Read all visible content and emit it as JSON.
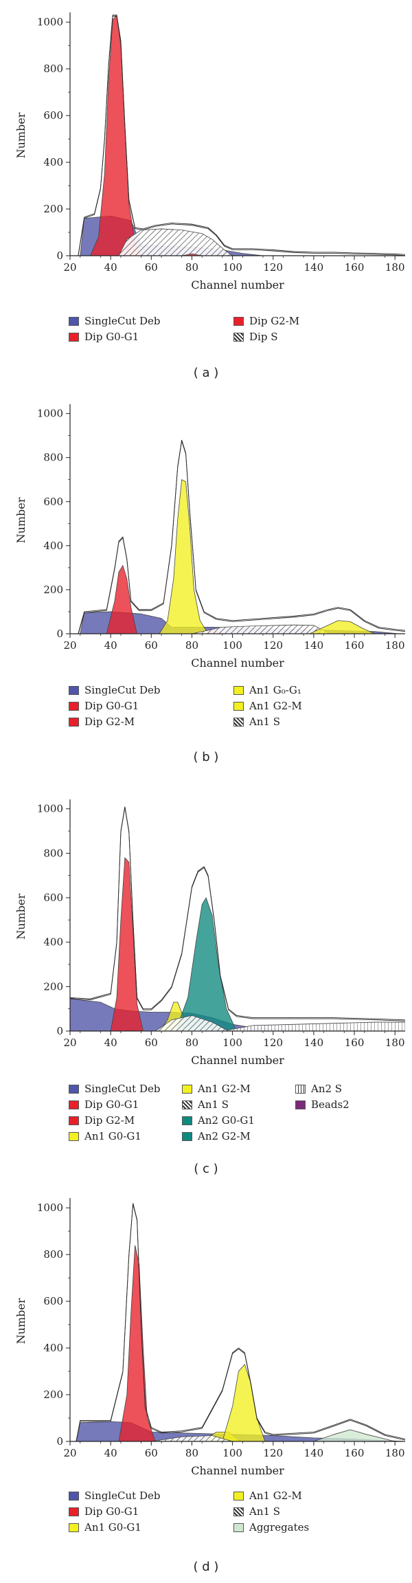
{
  "colors": {
    "SingleCut Deb": "#4f55a8",
    "Dip G0-G1": "#e8202a",
    "Dip G2-M": "#e8202a",
    "Dip S": "hatch",
    "An1 G0-G1": "#f2f020",
    "An1 G2-M": "#f2f020",
    "An1 S": "hatch",
    "An2 G0-G1": "#0f8a80",
    "An2 G2-M": "#0f8a80",
    "An2 S": "vhatch",
    "Beads2": "#7a2a7a",
    "Aggregates": "#cfe8cf"
  },
  "chart_data": [
    {
      "type": "area",
      "panel_label": "( a )",
      "xlabel": "Channel number",
      "ylabel": "Number",
      "xlim": [
        20,
        185
      ],
      "ylim": [
        0,
        1030
      ],
      "xticks": [
        "20",
        "40",
        "60",
        "80",
        "100",
        "120",
        "140",
        "160",
        "180"
      ],
      "yticks": [
        "0",
        "200",
        "400",
        "600",
        "800",
        "1000"
      ],
      "series": [
        {
          "name": "SingleCut Deb",
          "color": "#4f55a8",
          "x": [
            25,
            27,
            40,
            50,
            55,
            70,
            85,
            95,
            105,
            115
          ],
          "y": [
            0,
            160,
            170,
            150,
            45,
            40,
            35,
            25,
            10,
            0
          ]
        },
        {
          "name": "Dip G0-G1",
          "color": "#e8202a",
          "x": [
            30,
            34,
            37,
            39,
            41,
            43,
            45,
            47,
            49,
            52,
            55
          ],
          "y": [
            0,
            80,
            350,
            750,
            1010,
            1030,
            900,
            550,
            220,
            60,
            0
          ]
        },
        {
          "name": "Dip S",
          "color": "hatch",
          "x": [
            44,
            48,
            55,
            65,
            75,
            85,
            90,
            96,
            100
          ],
          "y": [
            0,
            70,
            110,
            115,
            110,
            95,
            70,
            25,
            0
          ]
        },
        {
          "name": "Dip G2-M",
          "color": "#e8202a",
          "x": [
            75,
            80,
            85
          ],
          "y": [
            0,
            8,
            0
          ]
        }
      ],
      "total_envelope": {
        "x": [
          24,
          27,
          32,
          35,
          37,
          39,
          41,
          43,
          45,
          47,
          49,
          52,
          56,
          62,
          70,
          80,
          88,
          92,
          96,
          100,
          110,
          120,
          130,
          140,
          150,
          160,
          170,
          180,
          185
        ],
        "y": [
          0,
          165,
          180,
          290,
          500,
          820,
          1030,
          1030,
          920,
          560,
          240,
          120,
          115,
          130,
          140,
          135,
          120,
          90,
          45,
          30,
          30,
          25,
          18,
          15,
          15,
          12,
          10,
          8,
          5
        ]
      },
      "legend": [
        "SingleCut Deb",
        "Dip G0-G1",
        "Dip G2-M",
        "Dip S"
      ]
    },
    {
      "type": "area",
      "panel_label": "( b )",
      "xlabel": "Channel number",
      "ylabel": "Number",
      "xlim": [
        20,
        185
      ],
      "ylim": [
        0,
        1030
      ],
      "xticks": [
        "20",
        "40",
        "60",
        "80",
        "100",
        "120",
        "140",
        "160",
        "180"
      ],
      "yticks": [
        "0",
        "200",
        "400",
        "600",
        "800",
        "1000"
      ],
      "series": [
        {
          "name": "SingleCut Deb",
          "color": "#4f55a8",
          "x": [
            25,
            27,
            40,
            55,
            65,
            70,
            90,
            110,
            130,
            150,
            170,
            182
          ],
          "y": [
            0,
            95,
            100,
            90,
            70,
            30,
            30,
            25,
            20,
            15,
            10,
            0
          ]
        },
        {
          "name": "Dip G0-G1",
          "color": "#e8202a",
          "x": [
            38,
            42,
            44,
            46,
            48,
            50,
            53
          ],
          "y": [
            0,
            150,
            280,
            310,
            250,
            120,
            0
          ]
        },
        {
          "name": "Dip G2-M",
          "color": "#e8202a",
          "x": [
            84,
            90,
            96
          ],
          "y": [
            0,
            18,
            0
          ]
        },
        {
          "name": "An1 G0-G1",
          "color": "#f2f020",
          "x": [
            64,
            68,
            71,
            73,
            75,
            77,
            79,
            81,
            84,
            88
          ],
          "y": [
            0,
            60,
            250,
            520,
            700,
            690,
            480,
            200,
            60,
            0
          ]
        },
        {
          "name": "An1 S",
          "color": "hatch",
          "x": [
            80,
            95,
            110,
            130,
            140,
            148
          ],
          "y": [
            0,
            30,
            35,
            40,
            38,
            0
          ]
        },
        {
          "name": "An1 G2-M",
          "color": "#f2f020",
          "x": [
            138,
            145,
            152,
            158,
            164,
            170
          ],
          "y": [
            0,
            30,
            60,
            55,
            25,
            0
          ]
        }
      ],
      "total_envelope": {
        "x": [
          24,
          27,
          38,
          42,
          44,
          46,
          48,
          50,
          54,
          60,
          66,
          70,
          73,
          75,
          77,
          79,
          82,
          86,
          92,
          100,
          115,
          130,
          140,
          147,
          152,
          158,
          165,
          172,
          180,
          185
        ],
        "y": [
          0,
          100,
          110,
          300,
          420,
          440,
          340,
          150,
          110,
          110,
          140,
          400,
          760,
          880,
          820,
          550,
          200,
          100,
          70,
          60,
          70,
          80,
          90,
          110,
          120,
          110,
          60,
          30,
          20,
          15
        ]
      },
      "legend": [
        "SingleCut Deb",
        "Dip G0-G1",
        "Dip G2-M",
        "An1 G₀-G₁",
        "An1 G2-M",
        "An1 S"
      ]
    },
    {
      "type": "area",
      "panel_label": "( c )",
      "xlabel": "Channel number",
      "ylabel": "Number",
      "xlim": [
        20,
        185
      ],
      "ylim": [
        0,
        1030
      ],
      "xticks": [
        "20",
        "40",
        "60",
        "80",
        "100",
        "120",
        "140",
        "160",
        "180"
      ],
      "yticks": [
        "0",
        "200",
        "400",
        "600",
        "800",
        "1000"
      ],
      "series": [
        {
          "name": "SingleCut Deb",
          "color": "#4f55a8",
          "x": [
            20,
            25,
            35,
            42,
            50,
            60,
            70,
            80,
            90,
            100,
            110,
            120,
            140,
            160,
            185
          ],
          "y": [
            150,
            140,
            130,
            100,
            90,
            85,
            85,
            80,
            60,
            30,
            15,
            10,
            5,
            3,
            0
          ]
        },
        {
          "name": "Dip G0-G1",
          "color": "#e8202a",
          "x": [
            40,
            43,
            45,
            47,
            49,
            51,
            53,
            56
          ],
          "y": [
            0,
            150,
            500,
            780,
            760,
            450,
            120,
            0
          ]
        },
        {
          "name": "An1 G0-G1",
          "color": "#f2f020",
          "x": [
            64,
            68,
            71,
            73,
            76,
            80
          ],
          "y": [
            0,
            50,
            130,
            130,
            60,
            0
          ]
        },
        {
          "name": "An2 G0-G1",
          "color": "#0f8a80",
          "x": [
            72,
            78,
            82,
            85,
            87,
            90,
            93,
            97,
            102
          ],
          "y": [
            0,
            150,
            400,
            570,
            600,
            520,
            300,
            100,
            0
          ]
        },
        {
          "name": "An2 S",
          "color": "vhatch",
          "x": [
            95,
            110,
            130,
            150,
            170,
            185
          ],
          "y": [
            0,
            25,
            30,
            35,
            40,
            40
          ]
        },
        {
          "name": "An1 S",
          "color": "hatch",
          "x": [
            62,
            70,
            80,
            90,
            98
          ],
          "y": [
            0,
            50,
            70,
            40,
            0
          ]
        }
      ],
      "total_envelope": {
        "x": [
          20,
          30,
          40,
          43,
          45,
          47,
          49,
          51,
          53,
          56,
          60,
          65,
          70,
          75,
          80,
          83,
          86,
          88,
          91,
          94,
          98,
          102,
          110,
          130,
          150,
          170,
          185
        ],
        "y": [
          150,
          145,
          170,
          400,
          900,
          1010,
          900,
          500,
          150,
          100,
          100,
          140,
          200,
          350,
          650,
          720,
          740,
          700,
          500,
          250,
          100,
          70,
          60,
          60,
          60,
          55,
          50
        ]
      },
      "legend": [
        "SingleCut Deb",
        "Dip G0-G1",
        "Dip G2-M",
        "An1 G0-G1",
        "An1 G2-M",
        "An1 S",
        "An2 G0-G1",
        "An2 G2-M",
        "An2 S",
        "Beads2"
      ]
    },
    {
      "type": "area",
      "panel_label": "( d )",
      "xlabel": "Channel number",
      "ylabel": "Number",
      "xlim": [
        20,
        185
      ],
      "ylim": [
        0,
        1030
      ],
      "xticks": [
        "20",
        "40",
        "60",
        "80",
        "100",
        "120",
        "140",
        "160",
        "180"
      ],
      "yticks": [
        "0",
        "200",
        "400",
        "600",
        "800",
        "1000"
      ],
      "series": [
        {
          "name": "SingleCut Deb",
          "color": "#4f55a8",
          "x": [
            23,
            25,
            40,
            50,
            60,
            80,
            100,
            120,
            140,
            160,
            185
          ],
          "y": [
            0,
            80,
            85,
            80,
            40,
            35,
            30,
            25,
            15,
            10,
            0
          ]
        },
        {
          "name": "Dip G0-G1",
          "color": "#e8202a",
          "x": [
            44,
            48,
            50,
            52,
            54,
            56,
            58,
            62
          ],
          "y": [
            0,
            200,
            550,
            840,
            760,
            400,
            100,
            0
          ]
        },
        {
          "name": "An1 G0-G1",
          "color": "#f2f020",
          "x": [
            85,
            92,
            98,
            104
          ],
          "y": [
            0,
            40,
            40,
            0
          ]
        },
        {
          "name": "An1 G2-M",
          "color": "#f2f020",
          "x": [
            95,
            100,
            103,
            106,
            109,
            112,
            116
          ],
          "y": [
            0,
            150,
            300,
            330,
            250,
            100,
            0
          ]
        },
        {
          "name": "An1 S",
          "color": "hatch",
          "x": [
            60,
            75,
            90,
            100
          ],
          "y": [
            0,
            20,
            25,
            0
          ]
        },
        {
          "name": "Aggregates",
          "color": "#cfe8cf",
          "x": [
            140,
            150,
            158,
            166,
            180
          ],
          "y": [
            0,
            30,
            50,
            30,
            0
          ]
        }
      ],
      "total_envelope": {
        "x": [
          23,
          25,
          40,
          46,
          49,
          51,
          53,
          55,
          57,
          60,
          65,
          75,
          85,
          95,
          100,
          103,
          106,
          109,
          112,
          116,
          120,
          140,
          150,
          158,
          166,
          175,
          185
        ],
        "y": [
          0,
          90,
          90,
          300,
          800,
          1020,
          950,
          500,
          150,
          60,
          40,
          45,
          60,
          220,
          380,
          400,
          380,
          250,
          100,
          40,
          30,
          40,
          70,
          95,
          70,
          30,
          10
        ]
      },
      "legend": [
        "SingleCut Deb",
        "Dip G0-G1",
        "An1 G0-G1",
        "An1 G2-M",
        "An1 S",
        "Aggregates"
      ]
    }
  ]
}
